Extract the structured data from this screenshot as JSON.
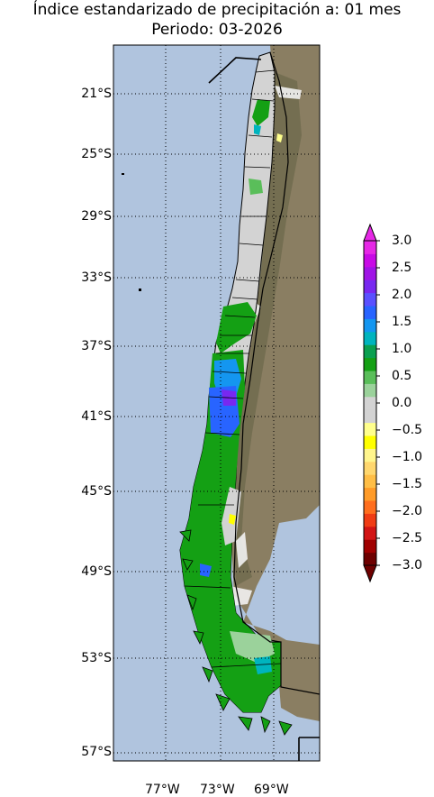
{
  "title": "Índice estandarizado de precipitación a: 01 mes",
  "subtitle": "Periodo: 03-2026",
  "lat_labels": [
    "21°S",
    "25°S",
    "29°S",
    "33°S",
    "37°S",
    "41°S",
    "45°S",
    "49°S",
    "53°S",
    "57°S"
  ],
  "lon_labels": [
    "77°W",
    "73°W",
    "69°W"
  ],
  "colorbar": {
    "labels": [
      "3.0",
      "2.5",
      "2.0",
      "1.5",
      "1.0",
      "0.5",
      "0.0",
      "−0.5",
      "−1.0",
      "−1.5",
      "−2.0",
      "−2.5",
      "−3.0"
    ],
    "range": [
      -3.0,
      3.0
    ],
    "extend": "both",
    "colors": [
      "#6e0000",
      "#a00000",
      "#d21414",
      "#f03c14",
      "#ff6e1e",
      "#ff9b28",
      "#ffbe46",
      "#ffd76e",
      "#fff58c",
      "#ffff00",
      "#ffff8c",
      "#d3d3d3",
      "#d3d3d3",
      "#9bd29b",
      "#5abe5a",
      "#14a014",
      "#0aa050",
      "#00b4be",
      "#1496f0",
      "#2864ff",
      "#5a50ff",
      "#7828f0",
      "#a014e6",
      "#c80ae6",
      "#e628e6"
    ]
  },
  "map": {
    "region": "Chile",
    "ocean_color": "#b0c4de",
    "land_color": "#8a7e62",
    "grid": "dotted"
  }
}
